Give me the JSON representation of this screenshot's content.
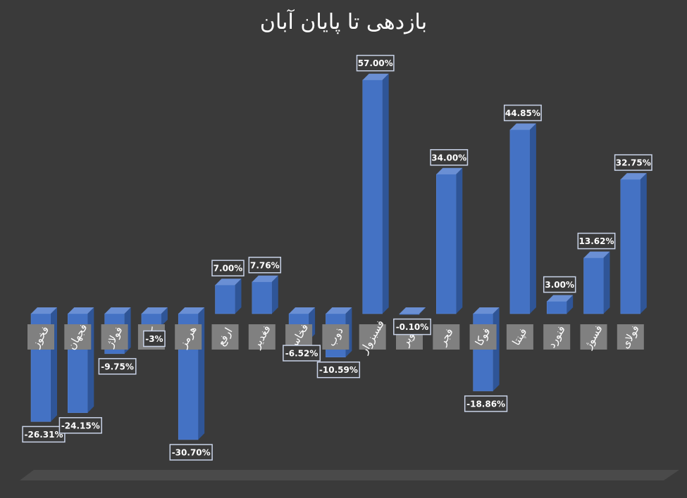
{
  "chart_data": {
    "type": "bar",
    "title": "بازدهی تا پایان آبان",
    "categories": [
      "فخوز",
      "فجهان",
      "فولاژ",
      "کاوه",
      "هرمز",
      "ارفع",
      "فغدیر",
      "فخاس",
      "ذوب",
      "فسبزوار",
      "کویر",
      "فجر",
      "فوکا",
      "فپنتا",
      "فنورد",
      "فسوژ",
      "فولای"
    ],
    "values": [
      -26.31,
      -24.15,
      -9.75,
      -3,
      -30.7,
      7.0,
      7.76,
      -6.52,
      -10.59,
      57.0,
      -0.1,
      34.0,
      -18.86,
      44.85,
      3.0,
      13.62,
      32.75
    ],
    "value_labels": [
      "-26.31%",
      "-24.15%",
      "-9.75%",
      "-3%",
      "-30.70%",
      "7.00%",
      "7.76%",
      "-6.52%",
      "-10.59%",
      "57.00%",
      "-0.10%",
      "34.00%",
      "-18.86%",
      "44.85%",
      "3.00%",
      "13.62%",
      "32.75%"
    ],
    "grid": false,
    "legend": "none",
    "colors": {
      "bar": "#4472c4",
      "bar_side": "#2f5597",
      "bar_top": "#6a8fd4",
      "background": "#3a3a3a",
      "label_box": "#808080",
      "floor": "#4a4a4a"
    }
  }
}
